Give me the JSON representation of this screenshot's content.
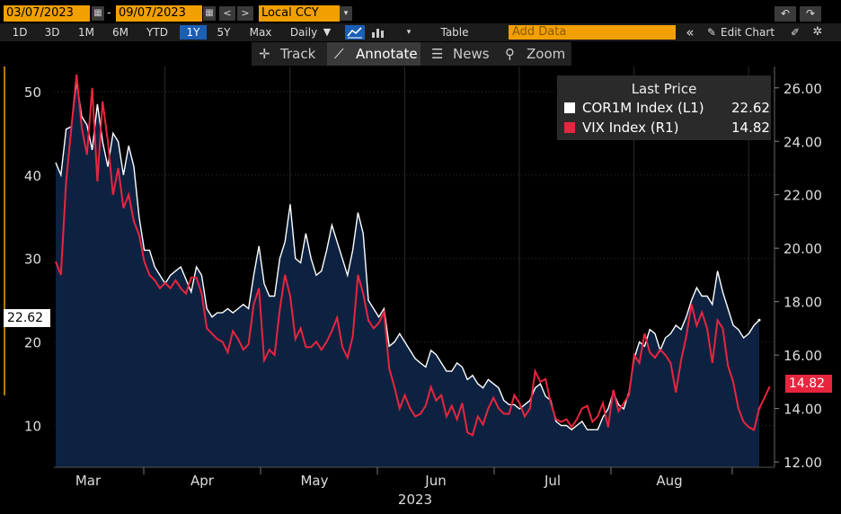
{
  "toolbar": {
    "start_date": "03/07/2023",
    "date_separator": "-",
    "end_date": "09/07/2023",
    "calendar_icon": "calendar-icon",
    "prev_icon": "chevron-left-icon",
    "next_icon": "chevron-right-icon",
    "currency": "Local CCY",
    "currency_dropdown_icon": "caret-down-icon",
    "undo_icon": "undo-icon",
    "redo_icon": "redo-icon"
  },
  "toolbar2": {
    "periods": [
      "1D",
      "3D",
      "1M",
      "6M",
      "YTD",
      "1Y",
      "5Y",
      "Max"
    ],
    "active_period": "1Y",
    "frequency": "Daily",
    "frequency_arrow": "▼",
    "table_label": "Table",
    "add_data_placeholder": "Add Data",
    "collapse_label": "«",
    "edit_chart_label": "Edit Chart",
    "chart_type_icon": "line-chart-icon",
    "pencil_icon": "pencil-icon",
    "settings_icon": "gear-icon"
  },
  "tools": {
    "track": "Track",
    "annotate": "Annotate",
    "news": "News",
    "zoom": "Zoom"
  },
  "chart_data": {
    "type": "area",
    "xlabel": "2023",
    "x_tick_labels": [
      "Mar",
      "Apr",
      "May",
      "Jun",
      "Jul",
      "Aug"
    ],
    "y_left_ticks": [
      10,
      20,
      30,
      40,
      50
    ],
    "y_left_range": [
      5,
      53
    ],
    "y_right_ticks": [
      "12.00",
      "14.00",
      "16.00",
      "18.00",
      "20.00",
      "22.00",
      "24.00",
      "26.00"
    ],
    "y_right_range": [
      11.8,
      26.8
    ],
    "legend_title": "Last Price",
    "legend_position": "top-right",
    "grid": true,
    "series": [
      {
        "name": "COR1M Index",
        "axis_label": "(L1)",
        "last": "22.62",
        "axis": "left",
        "color": "#ffffff",
        "fill": "#0d2240",
        "values": [
          41.5,
          40.0,
          45.5,
          45.8,
          51.2,
          47.0,
          46.0,
          43.0,
          48.5,
          44.0,
          41.0,
          45.0,
          44.0,
          40.0,
          43.5,
          41.0,
          35.0,
          31.0,
          31.0,
          29.0,
          28.0,
          27.0,
          28.0,
          28.5,
          29.0,
          27.5,
          26.0,
          29.0,
          28.0,
          24.0,
          23.0,
          23.5,
          23.5,
          24.0,
          23.5,
          24.0,
          24.5,
          24.0,
          28.0,
          31.5,
          27.0,
          25.5,
          25.5,
          30.0,
          32.0,
          36.5,
          30.0,
          29.5,
          33.0,
          30.0,
          28.0,
          28.5,
          31.0,
          34.0,
          32.0,
          30.0,
          28.0,
          31.0,
          35.5,
          33.0,
          25.0,
          24.0,
          23.0,
          24.0,
          19.5,
          20.0,
          21.0,
          20.0,
          19.0,
          18.0,
          17.5,
          17.0,
          19.0,
          18.5,
          17.5,
          16.5,
          16.5,
          17.5,
          17.0,
          15.5,
          16.0,
          15.0,
          14.5,
          15.5,
          15.0,
          14.5,
          13.0,
          12.5,
          12.5,
          12.0,
          12.5,
          13.0,
          14.5,
          15.0,
          13.5,
          13.0,
          10.5,
          10.0,
          10.0,
          9.5,
          10.0,
          10.5,
          9.5,
          9.5,
          9.5,
          11.0,
          12.0,
          14.0,
          12.5,
          12.0,
          14.0,
          18.0,
          20.0,
          19.5,
          21.5,
          21.0,
          19.0,
          20.5,
          21.0,
          22.0,
          21.5,
          23.0,
          25.0,
          26.5,
          25.5,
          25.5,
          24.5,
          28.5,
          26.0,
          24.0,
          22.0,
          21.5,
          20.5,
          21.0,
          22.0,
          22.62
        ]
      },
      {
        "name": "VIX Index",
        "axis_label": "(R1)",
        "last": "14.82",
        "axis": "right",
        "color": "#e8253f",
        "values": [
          19.5,
          19.0,
          22.5,
          24.5,
          26.5,
          24.5,
          23.5,
          26.0,
          22.5,
          25.5,
          24.0,
          22.0,
          23.0,
          21.5,
          22.0,
          21.0,
          20.5,
          19.5,
          19.0,
          18.8,
          18.5,
          18.7,
          18.5,
          18.8,
          18.5,
          18.3,
          18.9,
          18.9,
          18.3,
          17.0,
          16.8,
          16.6,
          16.5,
          16.1,
          16.9,
          16.6,
          16.2,
          16.4,
          17.9,
          18.5,
          15.8,
          16.2,
          16.0,
          17.7,
          19.0,
          18.2,
          16.6,
          17.0,
          16.3,
          16.3,
          16.5,
          16.2,
          16.5,
          16.9,
          17.4,
          16.3,
          15.9,
          16.7,
          19.0,
          18.3,
          17.3,
          17.0,
          17.2,
          17.6,
          15.5,
          14.8,
          14.0,
          14.5,
          14.0,
          13.7,
          13.8,
          14.1,
          14.8,
          14.3,
          14.5,
          13.7,
          14.1,
          13.6,
          14.2,
          13.1,
          13.0,
          13.7,
          13.4,
          14.0,
          14.4,
          14.0,
          13.8,
          13.8,
          14.5,
          14.2,
          13.7,
          14.0,
          15.4,
          15.0,
          15.1,
          14.2,
          13.6,
          13.5,
          13.6,
          13.3,
          13.6,
          14.0,
          14.1,
          13.5,
          13.7,
          14.2,
          13.3,
          14.7,
          13.9,
          14.2,
          14.5,
          16.0,
          15.7,
          16.8,
          16.1,
          15.9,
          16.2,
          16.0,
          15.7,
          14.6,
          15.8,
          16.7,
          17.9,
          17.1,
          17.6,
          17.0,
          15.7,
          17.3,
          17.0,
          15.6,
          15.0,
          14.0,
          13.5,
          13.3,
          13.2,
          14.0,
          14.4,
          14.82
        ]
      }
    ]
  }
}
